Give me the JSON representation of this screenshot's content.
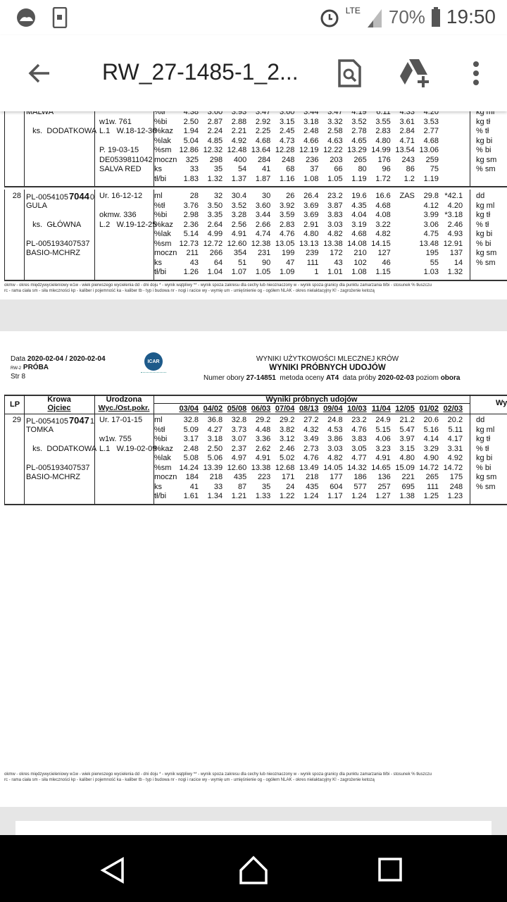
{
  "status": {
    "time": "19:50",
    "battery": "70%",
    "network": "LTE",
    "icons": [
      "weather-icon",
      "screen-mirror-icon",
      "alarm-icon",
      "signal-icon",
      "battery-icon"
    ]
  },
  "appbar": {
    "title": "RW_27-1485-1_2...",
    "icons": [
      "back-arrow-icon",
      "find-in-document-icon",
      "add-to-drive-icon",
      "more-vert-icon"
    ]
  },
  "page1": {
    "records": [
      {
        "lp": "",
        "rows": [
          {
            "label": "%tł",
            "values": [
              "4.38",
              "3.60",
              "3.93",
              "3.47",
              "3.60",
              "3.44",
              "3.47",
              "4.19",
              "6.11",
              "4.33",
              "4.20",
              ""
            ],
            "unit": "kg ml",
            "c2": "MALWA",
            "c3": ""
          },
          {
            "label": "%bi",
            "values": [
              "2.50",
              "2.87",
              "2.88",
              "2.92",
              "3.15",
              "3.18",
              "3.32",
              "3.52",
              "3.55",
              "3.61",
              "3.53",
              ""
            ],
            "unit": "kg tł",
            "c2": "",
            "c3": "w1w. 761"
          },
          {
            "label": "%kaz",
            "values": [
              "1.94",
              "2.24",
              "2.21",
              "2.25",
              "2.45",
              "2.48",
              "2.58",
              "2.78",
              "2.83",
              "2.84",
              "2.77",
              ""
            ],
            "unit": "% tł",
            "c2": "   ks.  DODATKOWA",
            "c3": "L.1   W.18-12-30"
          },
          {
            "label": "%lak",
            "values": [
              "5.04",
              "4.85",
              "4.92",
              "4.68",
              "4.73",
              "4.66",
              "4.63",
              "4.65",
              "4.80",
              "4.71",
              "4.68",
              ""
            ],
            "unit": "kg bi",
            "c2": "",
            "c3": ""
          },
          {
            "label": "%sm",
            "values": [
              "12.86",
              "12.32",
              "12.48",
              "13.64",
              "12.28",
              "12.19",
              "12.22",
              "13.29",
              "14.99",
              "13.54",
              "13.06",
              ""
            ],
            "unit": "% bi",
            "c2": "",
            "c3": "P. 19-03-15"
          },
          {
            "label": "moczn",
            "values": [
              "325",
              "298",
              "400",
              "284",
              "248",
              "236",
              "203",
              "265",
              "176",
              "243",
              "259",
              ""
            ],
            "unit": "kg sm",
            "c2": "",
            "c3": "DE0539811042"
          },
          {
            "label": "ks",
            "values": [
              "33",
              "35",
              "54",
              "41",
              "68",
              "37",
              "66",
              "80",
              "96",
              "86",
              "75",
              ""
            ],
            "unit": "% sm",
            "c2": "",
            "c3": "SALVA RED"
          },
          {
            "label": "tł/bi",
            "values": [
              "1.83",
              "1.32",
              "1.37",
              "1.87",
              "1.16",
              "1.08",
              "1.05",
              "1.19",
              "1.72",
              "1.2",
              "1.19",
              ""
            ],
            "unit": "",
            "c2": "",
            "c3": ""
          }
        ]
      },
      {
        "lp": "28",
        "id": [
          "PL-0054105",
          "7044",
          "0"
        ],
        "rows": [
          {
            "label": "ml",
            "values": [
              "28",
              "32",
              "30.4",
              "30",
              "26",
              "26.4",
              "23.2",
              "19.6",
              "16.6",
              "ZAS",
              "29.8",
              "*42.1"
            ],
            "unit": "dd",
            "c2": "",
            "c3": "Ur. 16-12-12"
          },
          {
            "label": "%tł",
            "values": [
              "3.76",
              "3.50",
              "3.52",
              "3.60",
              "3.92",
              "3.69",
              "3.87",
              "4.35",
              "4.68",
              "",
              "4.12",
              "4.20"
            ],
            "unit": "kg ml",
            "c2": "GULA",
            "c3": ""
          },
          {
            "label": "%bi",
            "values": [
              "2.98",
              "3.35",
              "3.28",
              "3.44",
              "3.59",
              "3.69",
              "3.83",
              "4.04",
              "4.08",
              "",
              "3.99",
              "*3.18"
            ],
            "unit": "kg tł",
            "c2": "",
            "c3": "okmw. 336"
          },
          {
            "label": "%kaz",
            "values": [
              "2.36",
              "2.64",
              "2.56",
              "2.66",
              "2.83",
              "2.91",
              "3.03",
              "3.19",
              "3.22",
              "",
              "3.06",
              "2.46"
            ],
            "unit": "% tł",
            "c2": "   ks.  GŁÓWNA",
            "c3": "L.2   W.19-12-25"
          },
          {
            "label": "%lak",
            "values": [
              "5.14",
              "4.99",
              "4.91",
              "4.74",
              "4.76",
              "4.80",
              "4.82",
              "4.68",
              "4.82",
              "",
              "4.75",
              "4.93"
            ],
            "unit": "kg bi",
            "c2": "",
            "c3": ""
          },
          {
            "label": "%sm",
            "values": [
              "12.73",
              "12.72",
              "12.60",
              "12.38",
              "13.05",
              "13.13",
              "13.38",
              "14.08",
              "14.15",
              "",
              "13.48",
              "12.91"
            ],
            "unit": "% bi",
            "c2": "PL-005193407537",
            "c3": ""
          },
          {
            "label": "moczn",
            "values": [
              "211",
              "266",
              "354",
              "231",
              "199",
              "239",
              "172",
              "210",
              "127",
              "",
              "195",
              "137"
            ],
            "unit": "kg sm",
            "c2": "BASIO-MCHRZ",
            "c3": ""
          },
          {
            "label": "ks",
            "values": [
              "43",
              "64",
              "51",
              "90",
              "47",
              "111",
              "43",
              "102",
              "46",
              "",
              "55",
              "14"
            ],
            "unit": "% sm",
            "c2": "",
            "c3": ""
          },
          {
            "label": "tł/bi",
            "values": [
              "1.26",
              "1.04",
              "1.07",
              "1.05",
              "1.09",
              "1",
              "1.01",
              "1.08",
              "1.15",
              "",
              "1.03",
              "1.32"
            ],
            "unit": "",
            "c2": "",
            "c3": ""
          }
        ]
      }
    ]
  },
  "legend": {
    "line1": "okmw - okres międzywycieleniowy   w1w - wiek pierwszego wycielenia   dd - dni doju   * - wynik wątpliwy   ** - wynik spoza zakresu dla cechy lub nieoznaczony   w - wynik spoza granicy dla punktu zamarzania   tł/bi - stosunek % tłuszczu",
    "line2": "rc - rama ciała   sm - siła mleczności   kp - kaliber i pojemność   ka - kaliber   tb - typ i budowa   nr - nogi i racice   wy - wymię   um - umięśnienie   og - ogółem   NLAK - okres nielaktacyjny   K! - zagrożenie ketozą"
  },
  "page2": {
    "data_label": "Data",
    "date": "2020-02-04 / 2020-02-04",
    "form": "RW-2",
    "kind": "PRÓBA",
    "page": "Str 8",
    "logo": "ICAR",
    "title1": "WYNIKI UŻYTKOWOŚCI MLECZNEJ KRÓW",
    "title2": "WYNIKI PRÓBNYCH UDOJÓW",
    "info": {
      "l1": "Numer obory ",
      "v1": "27-14851",
      "l2": "  metoda oceny ",
      "v2": "AT4",
      "l3": "  data próby ",
      "v3": "2020-02-03",
      "l4": " poziom ",
      "v4": "obora"
    },
    "headers": {
      "lp": "LP",
      "cow": "Krowa",
      "sire": "Ojciec",
      "born": "Urodzona",
      "calv": "Wyc./Ost.pokr.",
      "results": "Wyniki próbnych udojów",
      "right": "Wy",
      "dates": [
        "03/04",
        "04/02",
        "05/08",
        "06/03",
        "07/04",
        "08/13",
        "09/04",
        "10/03",
        "11/04",
        "12/05",
        "01/02",
        "02/03"
      ]
    },
    "records": [
      {
        "lp": "29",
        "id": [
          "PL-0054105",
          "7047",
          "1"
        ],
        "rows": [
          {
            "label": "ml",
            "values": [
              "32.8",
              "36.8",
              "32.8",
              "29.2",
              "29.2",
              "27.2",
              "24.8",
              "23.2",
              "24.9",
              "21.2",
              "20.6",
              "20.2"
            ],
            "unit": "dd",
            "c2": "",
            "c3": "Ur. 17-01-15"
          },
          {
            "label": "%tł",
            "values": [
              "5.09",
              "4.27",
              "3.73",
              "4.48",
              "3.82",
              "4.32",
              "4.53",
              "4.76",
              "5.15",
              "5.47",
              "5.16",
              "5.11"
            ],
            "unit": "kg ml",
            "c2": "TOMKA",
            "c3": ""
          },
          {
            "label": "%bi",
            "values": [
              "3.17",
              "3.18",
              "3.07",
              "3.36",
              "3.12",
              "3.49",
              "3.86",
              "3.83",
              "4.06",
              "3.97",
              "4.14",
              "4.17"
            ],
            "unit": "kg tł",
            "c2": "",
            "c3": "w1w. 755"
          },
          {
            "label": "%kaz",
            "values": [
              "2.48",
              "2.50",
              "2.37",
              "2.62",
              "2.46",
              "2.73",
              "3.03",
              "3.05",
              "3.23",
              "3.15",
              "3.29",
              "3.31"
            ],
            "unit": "% tł",
            "c2": "   ks.  DODATKOWA",
            "c3": "L.1   W.19-02-09"
          },
          {
            "label": "%lak",
            "values": [
              "5.08",
              "5.06",
              "4.97",
              "4.91",
              "5.02",
              "4.76",
              "4.82",
              "4.77",
              "4.91",
              "4.80",
              "4.90",
              "4.92"
            ],
            "unit": "kg bi",
            "c2": "",
            "c3": ""
          },
          {
            "label": "%sm",
            "values": [
              "14.24",
              "13.39",
              "12.60",
              "13.38",
              "12.68",
              "13.49",
              "14.05",
              "14.32",
              "14.65",
              "15.09",
              "14.72",
              "14.72"
            ],
            "unit": "% bi",
            "c2": "PL-005193407537",
            "c3": ""
          },
          {
            "label": "moczn",
            "values": [
              "184",
              "218",
              "435",
              "223",
              "171",
              "218",
              "177",
              "186",
              "136",
              "221",
              "265",
              "175"
            ],
            "unit": "kg sm",
            "c2": "BASIO-MCHRZ",
            "c3": ""
          },
          {
            "label": "ks",
            "values": [
              "41",
              "33",
              "87",
              "35",
              "24",
              "435",
              "604",
              "577",
              "257",
              "695",
              "111",
              "248"
            ],
            "unit": "% sm",
            "c2": "",
            "c3": ""
          },
          {
            "label": "tł/bi",
            "values": [
              "1.61",
              "1.34",
              "1.21",
              "1.33",
              "1.22",
              "1.24",
              "1.17",
              "1.24",
              "1.27",
              "1.38",
              "1.25",
              "1.23"
            ],
            "unit": "",
            "c2": "",
            "c3": ""
          }
        ]
      }
    ]
  }
}
